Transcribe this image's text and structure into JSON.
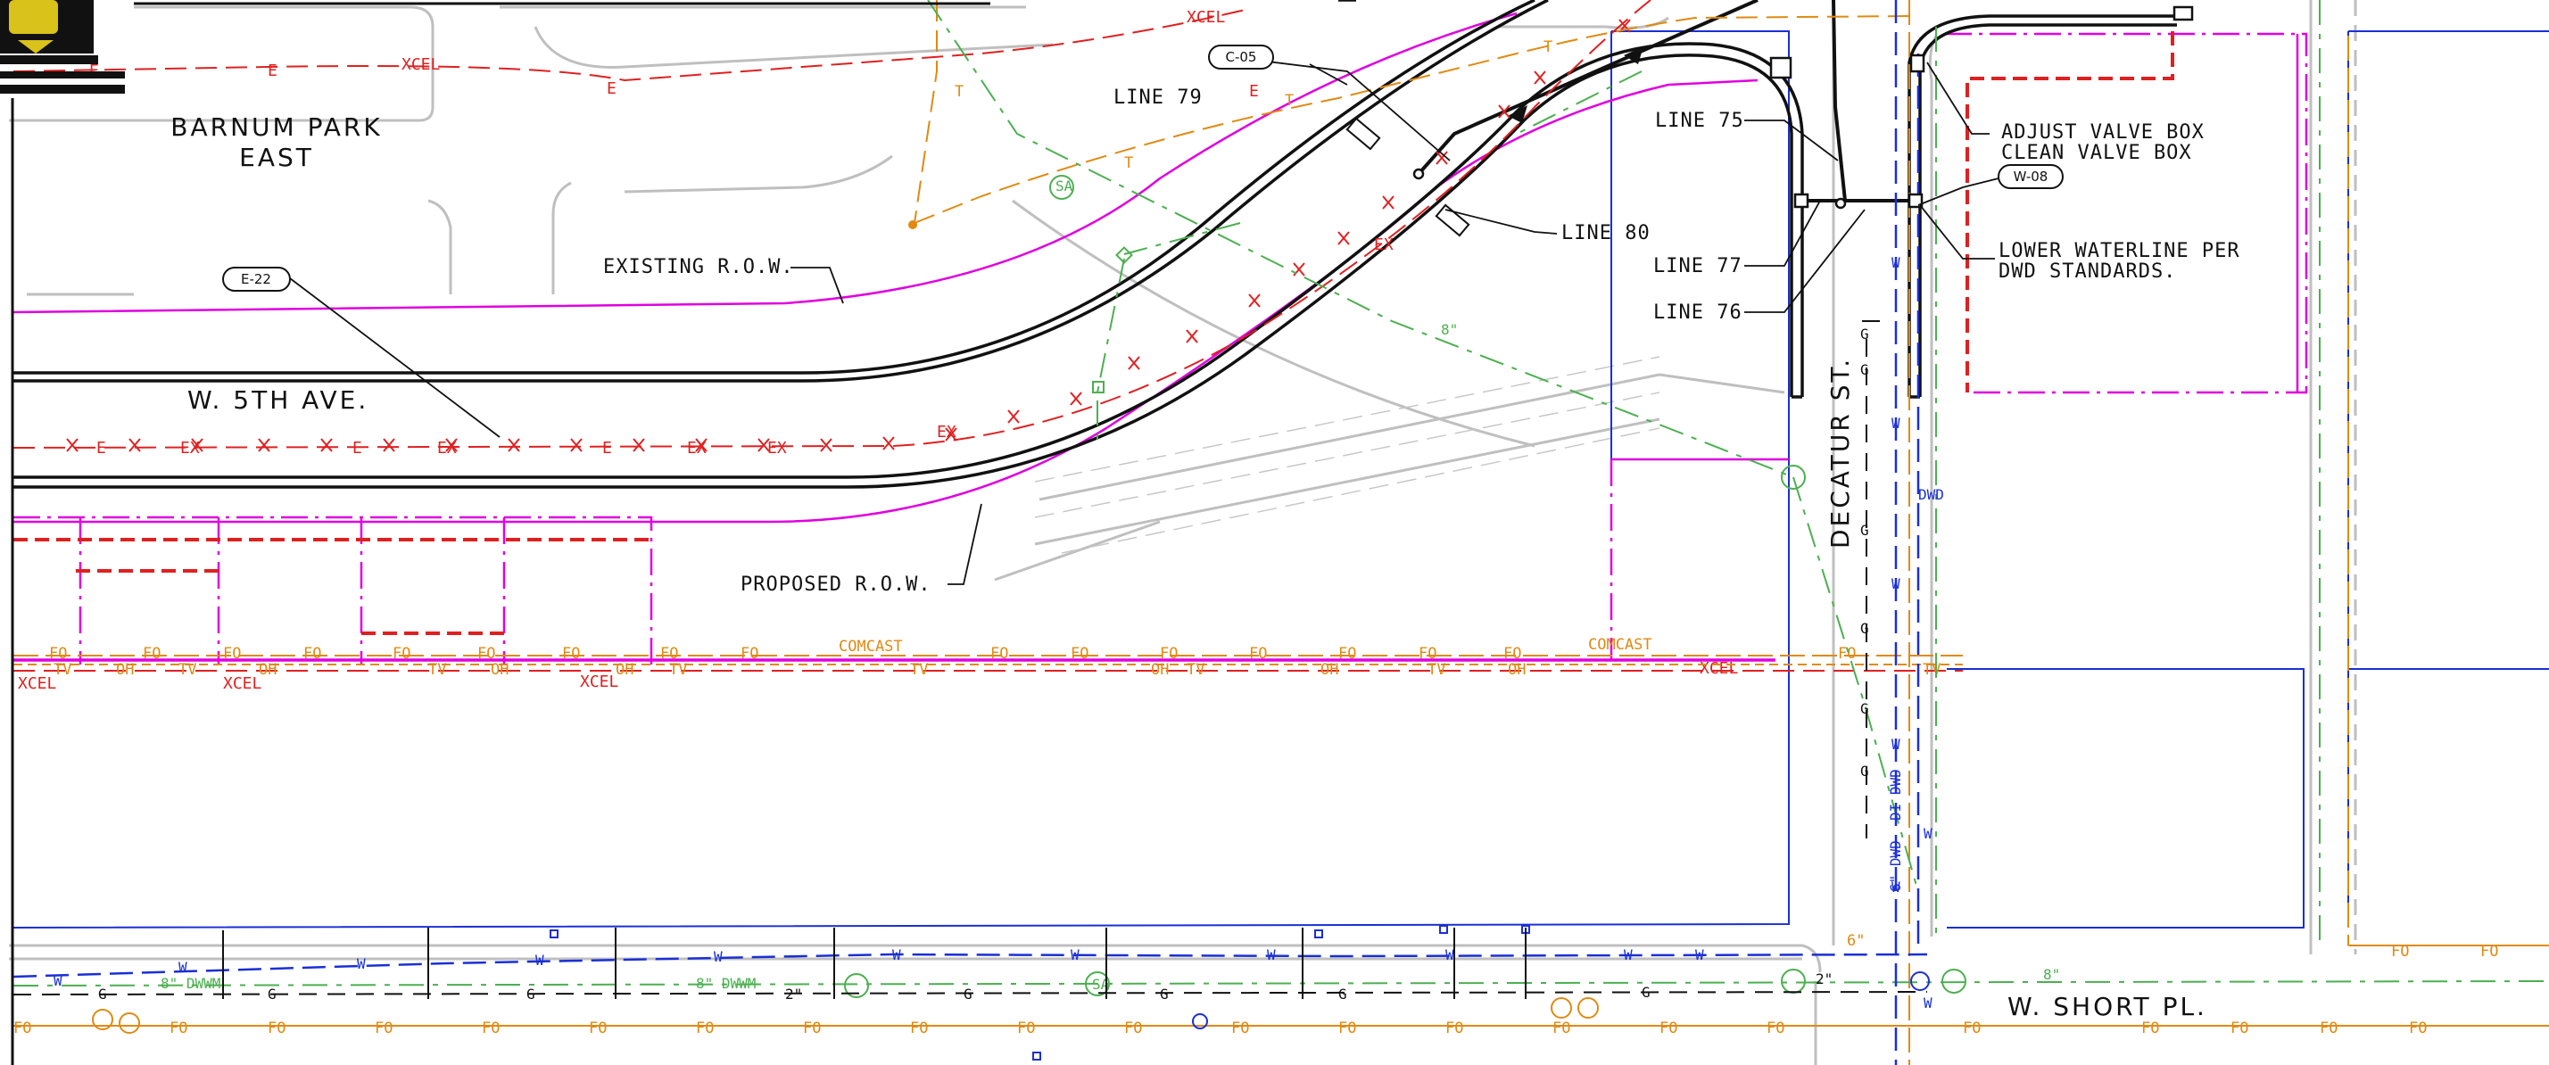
{
  "labels": {
    "park_line1": "BARNUM PARK",
    "park_line2": "EAST",
    "street_5th": "W. 5TH AVE.",
    "street_decatur": "DECATUR ST.",
    "street_short": "W. SHORT PL.",
    "existing_row": "EXISTING R.O.W.",
    "proposed_row": "PROPOSED R.O.W.",
    "line79": "LINE 79",
    "line80": "LINE 80",
    "line75": "LINE 75",
    "line77": "LINE 77",
    "line76": "LINE 76",
    "adjust1": "ADJUST VALVE BOX",
    "adjust2": "CLEAN VALVE BOX",
    "lower1": "LOWER WATERLINE PER",
    "lower2": "DWD STANDARDS."
  },
  "tags": {
    "c05": "C-05",
    "e22": "E-22",
    "w08": "W-08"
  },
  "utility_text": {
    "xcel": "XCEL",
    "comcast": "COMCAST",
    "dwd": "DWD",
    "di_dwd": "DI DWD",
    "six_dwd": "6\" DWD",
    "six_in": "6\"",
    "two_in": "2\"",
    "eight_in": "8\"",
    "eight_dwwm": "8\" DWWM",
    "sa": "SA",
    "fo": "FO",
    "tv": "TV",
    "oh": "OH",
    "e": "E",
    "ex": "EX",
    "g": "G",
    "w": "W",
    "t": "T"
  },
  "colors": {
    "electric": "#e02020",
    "telecom": "#e08a12",
    "water": "#1a2fd6",
    "gas": "#111111",
    "sanitary": "#4caf50",
    "row": "#e000e0",
    "parcel": "#1a2fd6"
  }
}
